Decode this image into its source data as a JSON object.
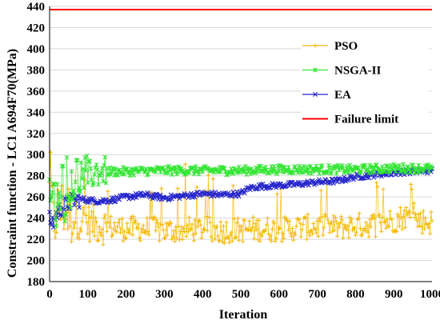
{
  "chart_data": {
    "type": "line",
    "title": "",
    "xlabel": "Iteration",
    "ylabel": "Constraint function - LC1 A694F70(MPa)",
    "xlim": [
      0,
      1000
    ],
    "ylim": [
      180,
      440
    ],
    "x_ticks": [
      "0",
      "100",
      "200",
      "300",
      "400",
      "500",
      "600",
      "700",
      "800",
      "900",
      "1000"
    ],
    "y_ticks": [
      "180",
      "200",
      "220",
      "240",
      "260",
      "280",
      "300",
      "320",
      "340",
      "360",
      "380",
      "400",
      "420",
      "440"
    ],
    "grid": "horizontal",
    "legend_position": "right",
    "series": [
      {
        "name": "PSO",
        "color": "#F5B800",
        "marker": "+",
        "x": [
          0,
          10,
          20,
          40,
          60,
          80,
          100,
          120,
          150,
          200,
          250,
          300,
          350,
          400,
          450,
          500,
          550,
          600,
          650,
          700,
          750,
          800,
          850,
          900,
          930,
          960,
          1000
        ],
        "y": [
          285,
          235,
          245,
          250,
          240,
          238,
          236,
          234,
          232,
          230,
          230,
          228,
          229,
          230,
          228,
          229,
          230,
          229,
          231,
          232,
          231,
          233,
          234,
          238,
          242,
          238,
          236
        ],
        "spread": 12
      },
      {
        "name": "NSGA-II",
        "color": "#33E633",
        "marker": "*",
        "x": [
          0,
          10,
          20,
          30,
          40,
          60,
          80,
          100,
          120,
          150,
          200,
          300,
          400,
          500,
          600,
          700,
          800,
          900,
          1000
        ],
        "y": [
          240,
          262,
          235,
          270,
          250,
          268,
          275,
          280,
          283,
          284,
          284,
          285,
          285,
          285,
          286,
          286,
          286,
          287,
          287
        ],
        "spread": 4
      },
      {
        "name": "EA",
        "color": "#2626CC",
        "marker": "x",
        "x": [
          0,
          10,
          20,
          40,
          60,
          80,
          100,
          130,
          160,
          200,
          250,
          300,
          350,
          400,
          450,
          500,
          520,
          550,
          600,
          650,
          700,
          750,
          800,
          850,
          900,
          950,
          1000
        ],
        "y": [
          238,
          236,
          245,
          252,
          256,
          258,
          257,
          256,
          257,
          260,
          262,
          259,
          261,
          263,
          262,
          263,
          268,
          270,
          271,
          272,
          274,
          275,
          279,
          281,
          283,
          284,
          285
        ],
        "spread": 2.5
      },
      {
        "name": "Failure limit",
        "color": "#FF0000",
        "marker": "none",
        "x": [
          0,
          1000
        ],
        "y": [
          437,
          437
        ],
        "spread": 0
      }
    ]
  }
}
